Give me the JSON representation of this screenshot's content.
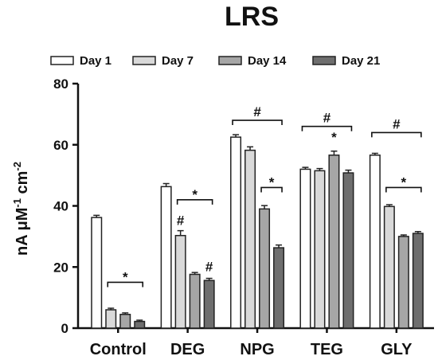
{
  "chart_data": {
    "type": "bar",
    "title": "LRS",
    "ylabel": "nA μM-1 cm-2",
    "ylabel_parts": {
      "base": "nA μM",
      "sup1": "-1",
      "mid": " cm",
      "sup2": "-2"
    },
    "xlabel": "",
    "ylim": [
      0,
      80
    ],
    "yticks": [
      "0",
      "20",
      "40",
      "60",
      "80"
    ],
    "categories": [
      "Control",
      "DEG",
      "NPG",
      "TEG",
      "GLY"
    ],
    "series": [
      {
        "name": "Day 1",
        "color": "#ffffff",
        "values": [
          36.2,
          46.3,
          62.5,
          52.0,
          56.6
        ],
        "errors": [
          0.7,
          1.0,
          0.8,
          0.6,
          0.6
        ]
      },
      {
        "name": "Day 7",
        "color": "#d9d9d9",
        "values": [
          6.0,
          30.3,
          58.2,
          51.5,
          39.8
        ],
        "errors": [
          0.5,
          1.6,
          1.1,
          0.7,
          0.6
        ]
      },
      {
        "name": "Day 14",
        "color": "#a6a6a6",
        "values": [
          4.5,
          17.6,
          39.0,
          56.6,
          30.0
        ],
        "errors": [
          0.5,
          0.6,
          1.1,
          1.3,
          0.5
        ]
      },
      {
        "name": "Day 21",
        "color": "#6e6e6e",
        "values": [
          2.2,
          15.6,
          26.3,
          50.8,
          31.0
        ],
        "errors": [
          0.4,
          0.7,
          0.9,
          0.9,
          0.6
        ]
      }
    ],
    "legend_position": "top",
    "grid": false,
    "annotations": [
      {
        "text": "*",
        "type": "bracket",
        "category": 0,
        "from_series": 1,
        "to_series": 3,
        "y": 15
      },
      {
        "text": "*",
        "type": "bracket",
        "category": 1,
        "from_series": 1,
        "to_series": 3,
        "y": 42
      },
      {
        "text": "#",
        "type": "label",
        "category": 1,
        "series": 1,
        "y": 33.8
      },
      {
        "text": "#",
        "type": "label",
        "category": 1,
        "series": 3,
        "y": 18.6
      },
      {
        "text": "#",
        "type": "bracket",
        "category": 2,
        "from_series": 0,
        "to_series": 3,
        "y": 68
      },
      {
        "text": "*",
        "type": "bracket",
        "category": 2,
        "from_series": 2,
        "to_series": 3,
        "y": 46
      },
      {
        "text": "#",
        "type": "bracket",
        "category": 3,
        "from_series": 0,
        "to_series": 3,
        "y": 66
      },
      {
        "text": "*",
        "type": "label",
        "category": 3,
        "series": 2,
        "y": 61
      },
      {
        "text": "#",
        "type": "bracket",
        "category": 4,
        "from_series": 0,
        "to_series": 3,
        "y": 64
      },
      {
        "text": "*",
        "type": "bracket",
        "category": 4,
        "from_series": 1,
        "to_series": 3,
        "y": 46
      }
    ]
  }
}
